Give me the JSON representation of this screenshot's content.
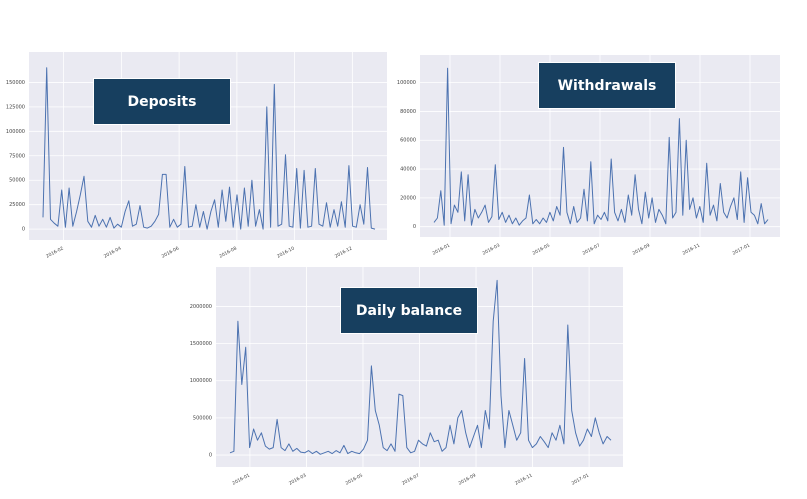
{
  "accent_color": "#173f5f",
  "line_color": "#4c72b0",
  "chart_data": [
    {
      "type": "line",
      "title": "Deposits",
      "xlabel": "",
      "ylabel": "",
      "ylim": [
        -5000,
        175000
      ],
      "yticks": [
        "0",
        "25000",
        "50000",
        "75000",
        "100000",
        "125000",
        "150000"
      ],
      "xticks": [
        "2016-02",
        "2016-04",
        "2016-06",
        "2016-08",
        "2016-10",
        "2016-12"
      ],
      "grid": true,
      "series": [
        {
          "values": [
            12000,
            165000,
            10000,
            6000,
            3000,
            40000,
            2000,
            42000,
            3000,
            18000,
            35000,
            54000,
            8000,
            2000,
            14000,
            3000,
            10000,
            2000,
            12000,
            1000,
            5000,
            2000,
            18000,
            29000,
            3000,
            5000,
            24000,
            2000,
            1000,
            3000,
            8000,
            15000,
            56000,
            56000,
            2000,
            10000,
            2000,
            5000,
            64000,
            2000,
            3000,
            25000,
            2000,
            18000,
            0,
            18000,
            30000,
            2000,
            40000,
            8000,
            43000,
            2000,
            35000,
            0,
            42000,
            3000,
            50000,
            3000,
            20000,
            0,
            125000,
            2000,
            148000,
            3000,
            5000,
            76000,
            3000,
            2000,
            62000,
            1000,
            60000,
            2000,
            3000,
            62000,
            5000,
            3000,
            27000,
            2000,
            20000,
            3000,
            28000,
            2000,
            65000,
            3000,
            2000,
            25000,
            5000,
            63000,
            1000,
            0
          ]
        }
      ]
    },
    {
      "type": "line",
      "title": "Withdrawals",
      "xlabel": "",
      "ylabel": "",
      "ylim": [
        -3000,
        115000
      ],
      "yticks": [
        "0",
        "20000",
        "40000",
        "60000",
        "80000",
        "100000"
      ],
      "xticks": [
        "2016-01",
        "2016-03",
        "2016-05",
        "2016-07",
        "2016-09",
        "2016-11",
        "2017-01"
      ],
      "grid": true,
      "series": [
        {
          "values": [
            3000,
            6000,
            25000,
            1000,
            110000,
            2000,
            15000,
            10000,
            38000,
            4000,
            36000,
            1000,
            12000,
            6000,
            10000,
            15000,
            3000,
            7000,
            43000,
            5000,
            10000,
            3000,
            8000,
            2000,
            6000,
            1000,
            4000,
            6000,
            22000,
            2000,
            5000,
            2000,
            6000,
            3000,
            10000,
            4000,
            14000,
            8000,
            55000,
            10000,
            2000,
            14000,
            3000,
            6000,
            26000,
            4000,
            45000,
            2000,
            8000,
            5000,
            10000,
            4000,
            47000,
            10000,
            4000,
            12000,
            3000,
            22000,
            8000,
            36000,
            12000,
            2000,
            24000,
            6000,
            20000,
            3000,
            12000,
            8000,
            2000,
            62000,
            6000,
            10000,
            75000,
            8000,
            60000,
            12000,
            20000,
            6000,
            14000,
            3000,
            44000,
            8000,
            15000,
            4000,
            30000,
            10000,
            6000,
            14000,
            20000,
            5000,
            38000,
            3000,
            34000,
            10000,
            8000,
            2000,
            16000,
            2000,
            5000
          ]
        }
      ]
    },
    {
      "type": "line",
      "title": "Daily balance",
      "xlabel": "",
      "ylabel": "",
      "ylim": [
        -80000,
        2450000
      ],
      "yticks": [
        "0",
        "500000",
        "1000000",
        "1500000",
        "2000000"
      ],
      "xticks": [
        "2016-01",
        "2016-03",
        "2016-05",
        "2016-07",
        "2016-09",
        "2016-11",
        "2017-01"
      ],
      "grid": true,
      "series": [
        {
          "values": [
            30000,
            50000,
            1800000,
            950000,
            1450000,
            100000,
            350000,
            200000,
            300000,
            120000,
            80000,
            100000,
            480000,
            100000,
            60000,
            150000,
            50000,
            90000,
            40000,
            30000,
            60000,
            20000,
            50000,
            10000,
            30000,
            50000,
            20000,
            60000,
            30000,
            130000,
            20000,
            50000,
            30000,
            20000,
            80000,
            200000,
            1200000,
            600000,
            400000,
            100000,
            60000,
            150000,
            50000,
            820000,
            800000,
            100000,
            30000,
            50000,
            200000,
            150000,
            120000,
            300000,
            180000,
            200000,
            50000,
            100000,
            400000,
            150000,
            500000,
            600000,
            300000,
            100000,
            250000,
            400000,
            100000,
            600000,
            350000,
            1800000,
            2350000,
            800000,
            100000,
            600000,
            400000,
            200000,
            300000,
            1300000,
            200000,
            100000,
            150000,
            250000,
            180000,
            100000,
            300000,
            200000,
            400000,
            150000,
            1750000,
            600000,
            300000,
            120000,
            200000,
            350000,
            250000,
            500000,
            300000,
            150000,
            250000,
            200000
          ]
        }
      ]
    }
  ]
}
